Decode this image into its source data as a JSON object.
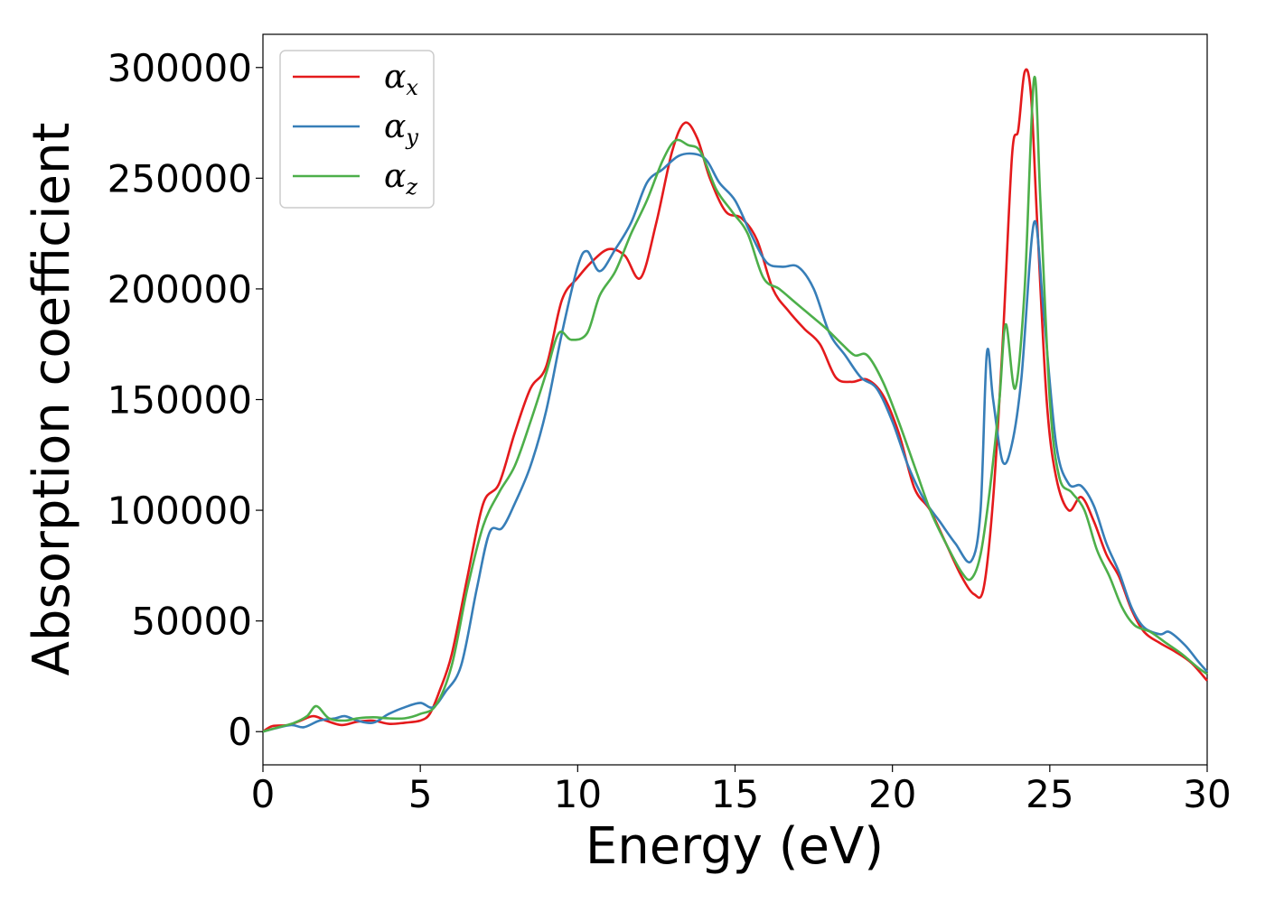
{
  "chart_data": {
    "type": "line",
    "title": "",
    "xlabel": "Energy (eV)",
    "ylabel": "Absorption coefficient",
    "xlim": [
      0,
      30
    ],
    "ylim": [
      -15000,
      315000
    ],
    "xticks": [
      0,
      5,
      10,
      15,
      20,
      25,
      30
    ],
    "yticks": [
      0,
      50000,
      100000,
      150000,
      200000,
      250000,
      300000
    ],
    "grid": false,
    "legend_position": "top-left",
    "series": [
      {
        "name": "αx",
        "symbol": "α",
        "subscript": "x",
        "color": "#e41a1c",
        "points": [
          [
            0,
            0
          ],
          [
            0.3,
            2500
          ],
          [
            0.8,
            3000
          ],
          [
            1.2,
            5000
          ],
          [
            1.6,
            7000
          ],
          [
            2.0,
            5000
          ],
          [
            2.5,
            3000
          ],
          [
            3.0,
            4500
          ],
          [
            3.5,
            5000
          ],
          [
            4.0,
            3500
          ],
          [
            4.5,
            4000
          ],
          [
            5.0,
            5000
          ],
          [
            5.3,
            8000
          ],
          [
            5.6,
            18000
          ],
          [
            6.0,
            35000
          ],
          [
            6.5,
            70000
          ],
          [
            7.0,
            103000
          ],
          [
            7.5,
            112000
          ],
          [
            8.0,
            135000
          ],
          [
            8.5,
            155000
          ],
          [
            9.0,
            165000
          ],
          [
            9.5,
            195000
          ],
          [
            10.0,
            205000
          ],
          [
            10.5,
            213000
          ],
          [
            11.0,
            218000
          ],
          [
            11.5,
            215000
          ],
          [
            12.0,
            205000
          ],
          [
            12.5,
            230000
          ],
          [
            13.0,
            262000
          ],
          [
            13.4,
            275000
          ],
          [
            13.8,
            268000
          ],
          [
            14.2,
            250000
          ],
          [
            14.7,
            235000
          ],
          [
            15.2,
            232000
          ],
          [
            15.7,
            222000
          ],
          [
            16.2,
            200000
          ],
          [
            16.7,
            190000
          ],
          [
            17.2,
            182000
          ],
          [
            17.7,
            175000
          ],
          [
            18.2,
            160000
          ],
          [
            18.7,
            158000
          ],
          [
            19.2,
            159000
          ],
          [
            19.7,
            152000
          ],
          [
            20.2,
            135000
          ],
          [
            20.7,
            110000
          ],
          [
            21.2,
            100000
          ],
          [
            21.7,
            85000
          ],
          [
            22.2,
            70000
          ],
          [
            22.6,
            62000
          ],
          [
            22.9,
            65000
          ],
          [
            23.2,
            105000
          ],
          [
            23.5,
            175000
          ],
          [
            23.8,
            260000
          ],
          [
            24.0,
            272000
          ],
          [
            24.2,
            298000
          ],
          [
            24.4,
            288000
          ],
          [
            24.6,
            230000
          ],
          [
            24.9,
            150000
          ],
          [
            25.2,
            115000
          ],
          [
            25.6,
            100000
          ],
          [
            26.0,
            106000
          ],
          [
            26.4,
            95000
          ],
          [
            26.8,
            80000
          ],
          [
            27.2,
            70000
          ],
          [
            27.6,
            55000
          ],
          [
            28.0,
            45000
          ],
          [
            28.5,
            40000
          ],
          [
            29.0,
            36000
          ],
          [
            29.5,
            31000
          ],
          [
            30.0,
            23000
          ]
        ]
      },
      {
        "name": "αy",
        "symbol": "α",
        "subscript": "y",
        "color": "#377eb8",
        "points": [
          [
            0,
            0
          ],
          [
            0.4,
            1500
          ],
          [
            0.9,
            3000
          ],
          [
            1.3,
            2000
          ],
          [
            1.8,
            5000
          ],
          [
            2.3,
            6000
          ],
          [
            2.6,
            7000
          ],
          [
            3.0,
            5000
          ],
          [
            3.5,
            4000
          ],
          [
            4.0,
            8000
          ],
          [
            4.5,
            11000
          ],
          [
            5.0,
            13000
          ],
          [
            5.4,
            11000
          ],
          [
            5.8,
            18000
          ],
          [
            6.3,
            30000
          ],
          [
            6.8,
            65000
          ],
          [
            7.2,
            90000
          ],
          [
            7.6,
            92000
          ],
          [
            8.0,
            103000
          ],
          [
            8.5,
            120000
          ],
          [
            9.0,
            145000
          ],
          [
            9.5,
            180000
          ],
          [
            10.0,
            210000
          ],
          [
            10.3,
            217000
          ],
          [
            10.7,
            208000
          ],
          [
            11.2,
            218000
          ],
          [
            11.7,
            230000
          ],
          [
            12.2,
            248000
          ],
          [
            12.7,
            254000
          ],
          [
            13.2,
            260000
          ],
          [
            13.7,
            261000
          ],
          [
            14.1,
            258000
          ],
          [
            14.5,
            248000
          ],
          [
            15.0,
            240000
          ],
          [
            15.5,
            225000
          ],
          [
            16.0,
            212000
          ],
          [
            16.5,
            210000
          ],
          [
            17.0,
            210000
          ],
          [
            17.5,
            200000
          ],
          [
            18.0,
            180000
          ],
          [
            18.5,
            170000
          ],
          [
            19.0,
            160000
          ],
          [
            19.5,
            155000
          ],
          [
            20.0,
            140000
          ],
          [
            20.5,
            120000
          ],
          [
            21.0,
            105000
          ],
          [
            21.5,
            95000
          ],
          [
            22.0,
            85000
          ],
          [
            22.5,
            77000
          ],
          [
            22.8,
            100000
          ],
          [
            23.0,
            171000
          ],
          [
            23.2,
            150000
          ],
          [
            23.5,
            122000
          ],
          [
            23.8,
            130000
          ],
          [
            24.1,
            160000
          ],
          [
            24.5,
            230000
          ],
          [
            24.8,
            190000
          ],
          [
            25.2,
            130000
          ],
          [
            25.6,
            112000
          ],
          [
            26.0,
            111000
          ],
          [
            26.4,
            102000
          ],
          [
            26.8,
            85000
          ],
          [
            27.2,
            72000
          ],
          [
            27.6,
            56000
          ],
          [
            28.0,
            47000
          ],
          [
            28.5,
            44000
          ],
          [
            28.8,
            45000
          ],
          [
            29.3,
            39000
          ],
          [
            29.7,
            32000
          ],
          [
            30.0,
            27000
          ]
        ]
      },
      {
        "name": "αz",
        "symbol": "α",
        "subscript": "z",
        "color": "#4daf4a",
        "points": [
          [
            0,
            0
          ],
          [
            0.5,
            2000
          ],
          [
            1.0,
            4000
          ],
          [
            1.4,
            7000
          ],
          [
            1.7,
            11500
          ],
          [
            2.1,
            6000
          ],
          [
            2.6,
            5000
          ],
          [
            3.0,
            6000
          ],
          [
            3.5,
            6500
          ],
          [
            4.0,
            6000
          ],
          [
            4.5,
            6000
          ],
          [
            5.0,
            8000
          ],
          [
            5.5,
            12000
          ],
          [
            6.0,
            30000
          ],
          [
            6.5,
            65000
          ],
          [
            7.0,
            93000
          ],
          [
            7.5,
            108000
          ],
          [
            8.0,
            120000
          ],
          [
            8.5,
            140000
          ],
          [
            9.0,
            162000
          ],
          [
            9.4,
            180000
          ],
          [
            9.8,
            177000
          ],
          [
            10.3,
            180000
          ],
          [
            10.7,
            197000
          ],
          [
            11.2,
            208000
          ],
          [
            11.7,
            225000
          ],
          [
            12.2,
            240000
          ],
          [
            12.7,
            258000
          ],
          [
            13.1,
            267000
          ],
          [
            13.5,
            265000
          ],
          [
            13.9,
            262000
          ],
          [
            14.4,
            245000
          ],
          [
            14.9,
            235000
          ],
          [
            15.4,
            225000
          ],
          [
            15.9,
            205000
          ],
          [
            16.4,
            200000
          ],
          [
            16.9,
            194000
          ],
          [
            17.4,
            188000
          ],
          [
            17.9,
            182000
          ],
          [
            18.4,
            175000
          ],
          [
            18.8,
            170000
          ],
          [
            19.2,
            170000
          ],
          [
            19.7,
            158000
          ],
          [
            20.2,
            140000
          ],
          [
            20.7,
            120000
          ],
          [
            21.2,
            100000
          ],
          [
            21.7,
            85000
          ],
          [
            22.2,
            72000
          ],
          [
            22.5,
            69000
          ],
          [
            22.8,
            80000
          ],
          [
            23.1,
            110000
          ],
          [
            23.4,
            150000
          ],
          [
            23.6,
            184000
          ],
          [
            23.9,
            155000
          ],
          [
            24.2,
            200000
          ],
          [
            24.5,
            295000
          ],
          [
            24.7,
            240000
          ],
          [
            25.0,
            150000
          ],
          [
            25.3,
            115000
          ],
          [
            25.7,
            108000
          ],
          [
            26.1,
            100000
          ],
          [
            26.5,
            82000
          ],
          [
            26.9,
            70000
          ],
          [
            27.3,
            56000
          ],
          [
            27.7,
            48000
          ],
          [
            28.2,
            45000
          ],
          [
            28.7,
            40000
          ],
          [
            29.2,
            35000
          ],
          [
            29.7,
            29000
          ],
          [
            30.0,
            26000
          ]
        ]
      }
    ]
  }
}
